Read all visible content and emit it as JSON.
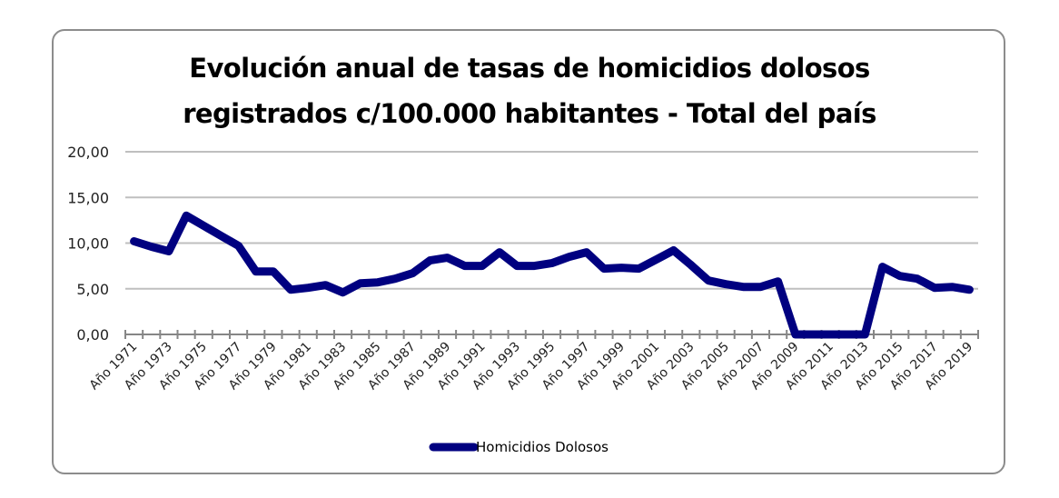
{
  "chart_data": {
    "type": "line",
    "title_line1": "Evolución anual de tasas de homicidios dolosos",
    "title_line2": "registrados c/100.000 habitantes - Total del país",
    "xlabel": "",
    "ylabel": "",
    "ylim": [
      0,
      20
    ],
    "yticks": [
      0,
      5,
      10,
      15,
      20
    ],
    "ytick_labels": [
      "0,00",
      "5,00",
      "10,00",
      "15,00",
      "20,00"
    ],
    "grid": true,
    "legend_position": "bottom",
    "categories": [
      "Año 1971",
      "Año 1972",
      "Año 1973",
      "Año 1974",
      "Año 1975",
      "Año 1976",
      "Año 1977",
      "Año 1978",
      "Año 1979",
      "Año 1980",
      "Año 1981",
      "Año 1982",
      "Año 1983",
      "Año 1984",
      "Año 1985",
      "Año 1986",
      "Año 1987",
      "Año 1988",
      "Año 1989",
      "Año 1990",
      "Año 1991",
      "Año 1992",
      "Año 1993",
      "Año 1994",
      "Año 1995",
      "Año 1996",
      "Año 1997",
      "Año 1998",
      "Año 1999",
      "Año 2000",
      "Año 2001",
      "Año 2002",
      "Año 2003",
      "Año 2004",
      "Año 2005",
      "Año 2006",
      "Año 2007",
      "Año 2008",
      "Año 2009",
      "Año 2010",
      "Año 2011",
      "Año 2012",
      "Año 2013",
      "Año 2014",
      "Año 2015",
      "Año 2016",
      "Año 2017",
      "Año 2018",
      "Año 2019"
    ],
    "visible_xtick_labels": [
      "Año 1971",
      "Año 1973",
      "Año 1975",
      "Año 1977",
      "Año 1979",
      "Año 1981",
      "Año 1983",
      "Año 1985",
      "Año 1987",
      "Año 1989",
      "Año 1991",
      "Año 1993",
      "Año 1995",
      "Año 1997",
      "Año 1999",
      "Año 2001",
      "Año 2003",
      "Año 2005",
      "Año 2007",
      "Año 2009",
      "Año 2011",
      "Año 2013",
      "Año 2015",
      "Año 2017",
      "Año 2019"
    ],
    "series": [
      {
        "name": "Homicidios Dolosos",
        "color": "#000080",
        "values": [
          10.2,
          9.6,
          9.1,
          13.0,
          11.9,
          10.8,
          9.7,
          6.9,
          6.9,
          4.9,
          5.1,
          5.4,
          4.6,
          5.6,
          5.7,
          6.1,
          6.7,
          8.1,
          8.4,
          7.5,
          7.5,
          9.0,
          7.5,
          7.5,
          7.8,
          8.5,
          9.0,
          7.2,
          7.3,
          7.2,
          8.2,
          9.2,
          7.6,
          5.9,
          5.5,
          5.2,
          5.2,
          5.8,
          0,
          0,
          0,
          0,
          0,
          7.4,
          6.4,
          6.1,
          5.1,
          5.2,
          4.9
        ]
      }
    ],
    "gridline_color": "#bfbfbf",
    "axis_color": "#868686"
  }
}
